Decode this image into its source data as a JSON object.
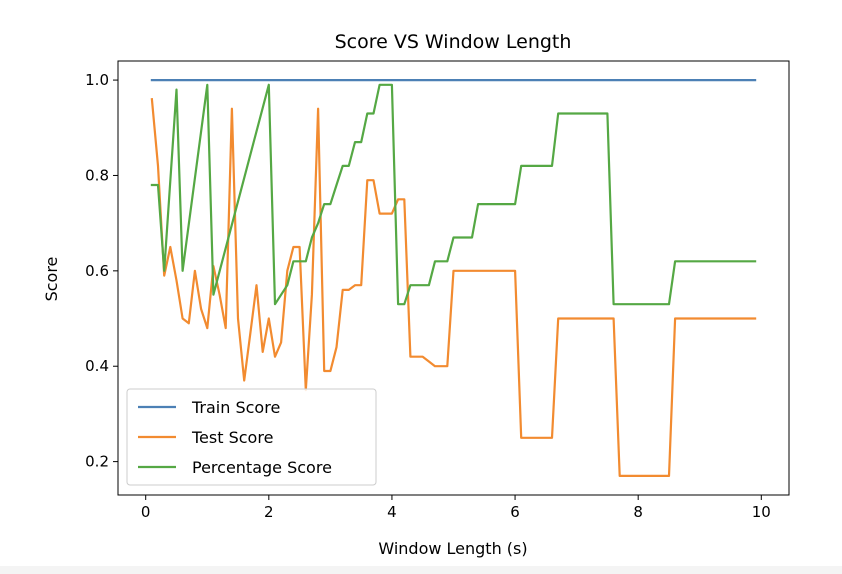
{
  "chart_data": {
    "type": "line",
    "title": "Score VS Window Length",
    "xlabel": "Window Length (s)",
    "ylabel": "Score",
    "xlim": [
      -0.45,
      10.45
    ],
    "ylim": [
      0.13,
      1.04
    ],
    "xticks": [
      0,
      2,
      4,
      6,
      8,
      10
    ],
    "xtick_labels": [
      "0",
      "2",
      "4",
      "6",
      "8",
      "10"
    ],
    "yticks": [
      0.2,
      0.4,
      0.6,
      0.8,
      1.0
    ],
    "ytick_labels": [
      "0.2",
      "0.4",
      "0.6",
      "0.8",
      "1.0"
    ],
    "grid": false,
    "legend_position": "lower-left",
    "series": [
      {
        "name": "Train Score",
        "color": "#4c80b5",
        "x": [
          0.1,
          9.9
        ],
        "y": [
          1.0,
          1.0
        ]
      },
      {
        "name": "Test Score",
        "color": "#f28b30",
        "x": [
          0.1,
          0.2,
          0.3,
          0.4,
          0.5,
          0.6,
          0.7,
          0.8,
          0.9,
          1.0,
          1.1,
          1.2,
          1.3,
          1.4,
          1.5,
          1.6,
          1.7,
          1.8,
          1.9,
          2.0,
          2.1,
          2.2,
          2.3,
          2.4,
          2.5,
          2.6,
          2.7,
          2.8,
          2.9,
          3.0,
          3.1,
          3.2,
          3.3,
          3.4,
          3.5,
          3.6,
          3.7,
          3.8,
          3.9,
          4.0,
          4.1,
          4.2,
          4.3,
          4.4,
          4.5,
          4.6,
          4.7,
          4.8,
          4.9,
          5.0,
          5.1,
          5.9,
          6.0,
          6.1,
          6.5,
          6.6,
          6.7,
          7.5,
          7.6,
          7.7,
          8.4,
          8.5,
          8.6,
          9.9
        ],
        "y": [
          0.96,
          0.82,
          0.59,
          0.65,
          0.58,
          0.5,
          0.49,
          0.6,
          0.52,
          0.48,
          0.61,
          0.55,
          0.48,
          0.94,
          0.5,
          0.37,
          0.47,
          0.57,
          0.43,
          0.5,
          0.42,
          0.45,
          0.6,
          0.65,
          0.65,
          0.35,
          0.55,
          0.94,
          0.39,
          0.39,
          0.44,
          0.56,
          0.56,
          0.57,
          0.57,
          0.79,
          0.79,
          0.72,
          0.72,
          0.72,
          0.75,
          0.75,
          0.42,
          0.42,
          0.42,
          0.41,
          0.4,
          0.4,
          0.4,
          0.6,
          0.6,
          0.6,
          0.6,
          0.25,
          0.25,
          0.25,
          0.5,
          0.5,
          0.5,
          0.17,
          0.17,
          0.17,
          0.5,
          0.5
        ]
      },
      {
        "name": "Percentage Score",
        "color": "#55a844",
        "x": [
          0.1,
          0.2,
          0.3,
          0.5,
          0.6,
          1.0,
          1.1,
          2.0,
          2.1,
          2.3,
          2.4,
          2.6,
          2.7,
          2.8,
          2.9,
          3.0,
          3.1,
          3.2,
          3.3,
          3.4,
          3.5,
          3.6,
          3.7,
          3.8,
          3.9,
          4.0,
          4.1,
          4.2,
          4.3,
          4.4,
          4.5,
          4.6,
          4.7,
          4.8,
          4.9,
          5.0,
          5.1,
          5.3,
          5.4,
          5.5,
          5.9,
          6.0,
          6.1,
          6.5,
          6.6,
          6.7,
          7.5,
          7.6,
          7.7,
          8.4,
          8.5,
          8.6,
          9.9
        ],
        "y": [
          0.78,
          0.78,
          0.6,
          0.98,
          0.6,
          0.99,
          0.55,
          0.99,
          0.53,
          0.57,
          0.62,
          0.62,
          0.67,
          0.7,
          0.74,
          0.74,
          0.78,
          0.82,
          0.82,
          0.87,
          0.87,
          0.93,
          0.93,
          0.99,
          0.99,
          0.99,
          0.53,
          0.53,
          0.57,
          0.57,
          0.57,
          0.57,
          0.62,
          0.62,
          0.62,
          0.67,
          0.67,
          0.67,
          0.74,
          0.74,
          0.74,
          0.74,
          0.82,
          0.82,
          0.82,
          0.93,
          0.93,
          0.53,
          0.53,
          0.53,
          0.53,
          0.62,
          0.62
        ]
      }
    ]
  }
}
